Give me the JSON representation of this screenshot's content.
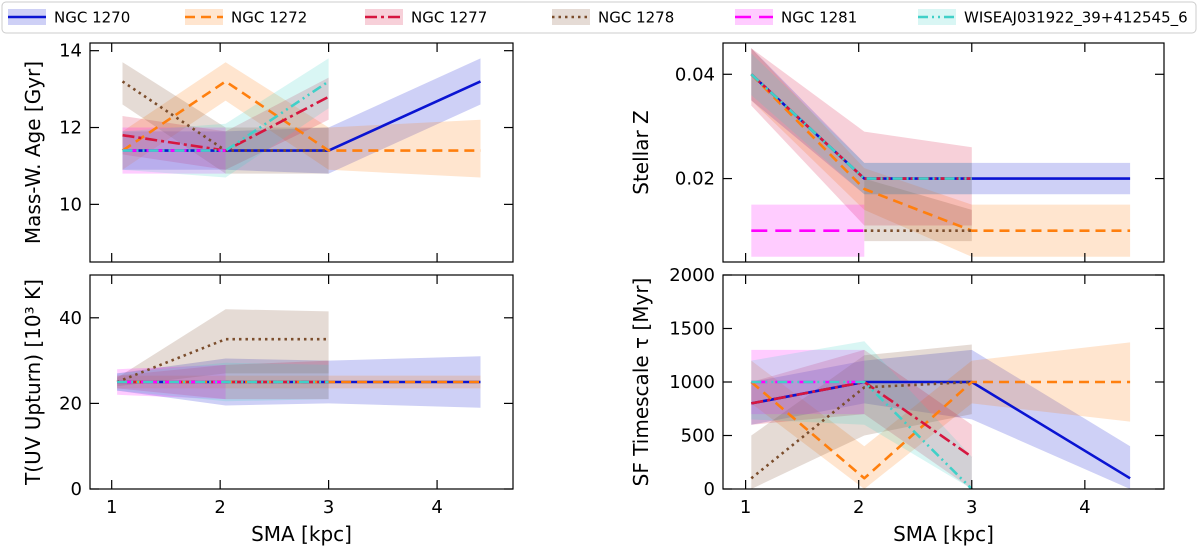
{
  "colors": {
    "NGC 1270": "#0a14d2",
    "NGC 1272": "#ff7f0e",
    "NGC 1277": "#d6163f",
    "NGC 1278": "#7b4d2c",
    "NGC 1281": "#ff00ff",
    "WISEAJ031922_39+412545_6": "#40d0c8"
  },
  "legend": {
    "entries": [
      {
        "name": "NGC 1270",
        "style": "solid"
      },
      {
        "name": "NGC 1272",
        "style": "dashed"
      },
      {
        "name": "NGC 1277",
        "style": "dashdot"
      },
      {
        "name": "NGC 1278",
        "style": "dotted"
      },
      {
        "name": "NGC 1281",
        "style": "longdash"
      },
      {
        "name": "WISEAJ031922_39+412545_6",
        "style": "dashdotdot"
      }
    ],
    "placement": "top"
  },
  "chart_data": [
    {
      "type": "line",
      "panel": "top-left",
      "xlabel": "",
      "ylabel": "Mass-W. Age [Gyr]",
      "xlim": [
        0.8,
        4.7
      ],
      "ylim": [
        8.5,
        14.2
      ],
      "xticks": [
        1,
        2,
        3,
        4
      ],
      "yticks": [
        10,
        12,
        14
      ],
      "show_xticklabels": false,
      "series": [
        {
          "name": "NGC 1270",
          "x": [
            1.1,
            2.05,
            3.0,
            4.4
          ],
          "y": [
            11.4,
            11.4,
            11.4,
            13.2
          ],
          "lo": [
            10.9,
            10.9,
            10.8,
            12.6
          ],
          "hi": [
            11.9,
            11.9,
            12.0,
            13.8
          ]
        },
        {
          "name": "NGC 1272",
          "x": [
            1.1,
            2.05,
            3.0,
            4.4
          ],
          "y": [
            11.4,
            13.2,
            11.4,
            11.4
          ],
          "lo": [
            10.9,
            12.7,
            10.9,
            10.7
          ],
          "hi": [
            11.9,
            13.7,
            12.0,
            12.2
          ]
        },
        {
          "name": "NGC 1277",
          "x": [
            1.1,
            2.05,
            3.0
          ],
          "y": [
            11.8,
            11.4,
            12.8
          ],
          "lo": [
            11.3,
            10.9,
            12.2
          ],
          "hi": [
            12.3,
            11.9,
            13.3
          ]
        },
        {
          "name": "NGC 1278",
          "x": [
            1.1,
            2.05,
            3.0
          ],
          "y": [
            13.2,
            11.4,
            11.4
          ],
          "lo": [
            12.6,
            10.8,
            10.8
          ],
          "hi": [
            13.7,
            12.0,
            12.0
          ]
        },
        {
          "name": "NGC 1281",
          "x": [
            1.1,
            2.05
          ],
          "y": [
            11.4,
            11.4
          ],
          "lo": [
            10.8,
            10.8
          ],
          "hi": [
            12.0,
            12.0
          ]
        },
        {
          "name": "WISEAJ031922_39+412545_6",
          "x": [
            1.1,
            2.05,
            3.0
          ],
          "y": [
            11.4,
            11.4,
            13.2
          ],
          "lo": [
            10.9,
            10.7,
            12.5
          ],
          "hi": [
            11.9,
            12.1,
            13.8
          ]
        }
      ]
    },
    {
      "type": "line",
      "panel": "top-right",
      "xlabel": "",
      "ylabel": "Stellar Z",
      "xlim": [
        0.8,
        4.7
      ],
      "ylim": [
        0.004,
        0.046
      ],
      "xticks": [
        1,
        2,
        3,
        4
      ],
      "yticks": [
        0.02,
        0.04
      ],
      "show_xticklabels": false,
      "series": [
        {
          "name": "NGC 1270",
          "x": [
            1.05,
            2.05,
            3.0,
            4.4
          ],
          "y": [
            0.04,
            0.02,
            0.02,
            0.02
          ],
          "lo": [
            0.035,
            0.017,
            0.017,
            0.017
          ],
          "hi": [
            0.045,
            0.023,
            0.023,
            0.023
          ]
        },
        {
          "name": "NGC 1272",
          "x": [
            1.05,
            2.05,
            3.0,
            4.4
          ],
          "y": [
            0.04,
            0.018,
            0.01,
            0.01
          ],
          "lo": [
            0.035,
            0.014,
            0.005,
            0.005
          ],
          "hi": [
            0.045,
            0.022,
            0.015,
            0.015
          ]
        },
        {
          "name": "NGC 1277",
          "x": [
            1.05,
            2.05,
            3.0
          ],
          "y": [
            0.04,
            0.02,
            0.02
          ],
          "lo": [
            0.034,
            0.011,
            0.011
          ],
          "hi": [
            0.045,
            0.029,
            0.026
          ]
        },
        {
          "name": "NGC 1278",
          "x": [
            2.05,
            3.0
          ],
          "y": [
            0.01,
            0.01
          ],
          "lo": [
            0.008,
            0.008
          ],
          "hi": [
            0.02,
            0.014
          ]
        },
        {
          "name": "NGC 1281",
          "x": [
            1.05,
            2.05
          ],
          "y": [
            0.01,
            0.01
          ],
          "lo": [
            0.005,
            0.005
          ],
          "hi": [
            0.015,
            0.015
          ]
        },
        {
          "name": "WISEAJ031922_39+412545_6",
          "x": [
            1.05,
            2.05,
            3.0
          ],
          "y": [
            0.04,
            0.02,
            0.02
          ],
          "lo": [
            0.036,
            0.017,
            0.017
          ],
          "hi": [
            0.044,
            0.023,
            0.023
          ]
        }
      ]
    },
    {
      "type": "line",
      "panel": "bottom-left",
      "xlabel": "SMA [kpc]",
      "ylabel": "T(UV Upturn) [10³ K]",
      "xlim": [
        0.8,
        4.7
      ],
      "ylim": [
        0,
        50
      ],
      "xticks": [
        1,
        2,
        3,
        4
      ],
      "yticks": [
        0,
        20,
        40
      ],
      "show_xticklabels": true,
      "series": [
        {
          "name": "NGC 1270",
          "x": [
            1.05,
            2.05,
            3.0,
            4.4
          ],
          "y": [
            25,
            25,
            25,
            25
          ],
          "lo": [
            23,
            19.5,
            20,
            19
          ],
          "hi": [
            27,
            30.5,
            30,
            31
          ]
        },
        {
          "name": "NGC 1272",
          "x": [
            1.05,
            2.05,
            3.0,
            4.4
          ],
          "y": [
            25,
            25,
            25,
            25
          ],
          "lo": [
            23.5,
            23.5,
            23.5,
            23.5
          ],
          "hi": [
            26.5,
            26.5,
            26.5,
            26.5
          ]
        },
        {
          "name": "NGC 1277",
          "x": [
            1.05,
            2.05,
            3.0
          ],
          "y": [
            25,
            25,
            25
          ],
          "lo": [
            23.5,
            21,
            21
          ],
          "hi": [
            26.5,
            29,
            30
          ]
        },
        {
          "name": "NGC 1278",
          "x": [
            1.05,
            2.05,
            3.0
          ],
          "y": [
            25,
            35,
            35
          ],
          "lo": [
            24,
            27,
            27
          ],
          "hi": [
            26,
            42,
            41.5
          ]
        },
        {
          "name": "NGC 1281",
          "x": [
            1.05,
            2.05
          ],
          "y": [
            25,
            25
          ],
          "lo": [
            22,
            21
          ],
          "hi": [
            28,
            29
          ]
        },
        {
          "name": "WISEAJ031922_39+412545_6",
          "x": [
            1.05,
            2.05,
            3.0
          ],
          "y": [
            25,
            25,
            25
          ],
          "lo": [
            23,
            20.5,
            21
          ],
          "hi": [
            27,
            29.5,
            29
          ]
        }
      ]
    },
    {
      "type": "line",
      "panel": "bottom-right",
      "xlabel": "SMA [kpc]",
      "ylabel": "SF Timescale τ [Myr]",
      "xlim": [
        0.8,
        4.7
      ],
      "ylim": [
        0,
        2000
      ],
      "xticks": [
        1,
        2,
        3,
        4
      ],
      "yticks": [
        0,
        500,
        1000,
        1500,
        2000
      ],
      "show_xticklabels": true,
      "series": [
        {
          "name": "NGC 1270",
          "x": [
            1.05,
            2.05,
            3.0,
            4.4
          ],
          "y": [
            800,
            1000,
            1000,
            100
          ],
          "lo": [
            600,
            800,
            650,
            0
          ],
          "hi": [
            1000,
            1200,
            1300,
            400
          ]
        },
        {
          "name": "NGC 1272",
          "x": [
            1.05,
            2.05,
            3.0,
            4.4
          ],
          "y": [
            1000,
            100,
            1000,
            1000
          ],
          "lo": [
            800,
            0,
            800,
            630
          ],
          "hi": [
            1200,
            400,
            1200,
            1370
          ]
        },
        {
          "name": "NGC 1277",
          "x": [
            1.05,
            2.05,
            3.0
          ],
          "y": [
            800,
            1000,
            300
          ],
          "lo": [
            600,
            700,
            0
          ],
          "hi": [
            1000,
            1300,
            600
          ]
        },
        {
          "name": "NGC 1278",
          "x": [
            1.05,
            2.05,
            3.0
          ],
          "y": [
            100,
            950,
            1000
          ],
          "lo": [
            0,
            500,
            700
          ],
          "hi": [
            500,
            1250,
            1350
          ]
        },
        {
          "name": "NGC 1281",
          "x": [
            1.05,
            2.05
          ],
          "y": [
            1000,
            1000
          ],
          "lo": [
            700,
            700
          ],
          "hi": [
            1300,
            1300
          ]
        },
        {
          "name": "WISEAJ031922_39+412545_6",
          "x": [
            1.05,
            2.05,
            3.0
          ],
          "y": [
            1000,
            1000,
            0
          ],
          "lo": [
            650,
            600,
            0
          ],
          "hi": [
            1200,
            1380,
            300
          ]
        }
      ]
    }
  ]
}
